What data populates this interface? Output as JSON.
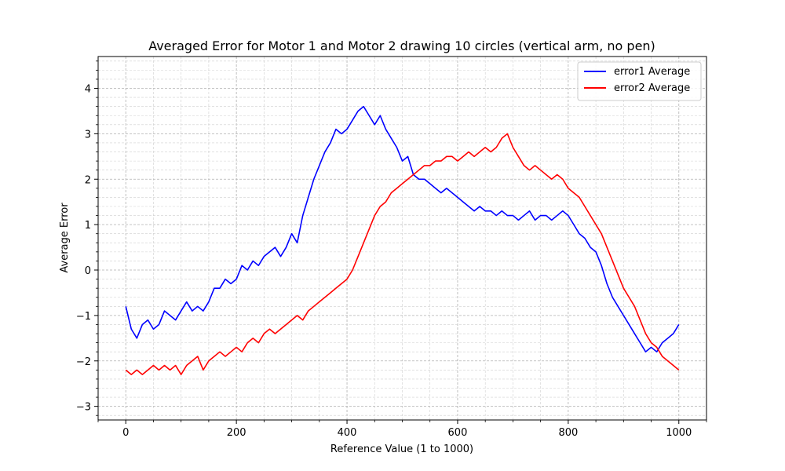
{
  "chart_data": {
    "type": "line",
    "title": "Averaged Error for Motor 1 and Motor 2 drawing 10 circles (vertical arm, no pen)",
    "xlabel": "Reference Value (1 to 1000)",
    "ylabel": "Average Error",
    "xlim": [
      -50,
      1050
    ],
    "ylim": [
      -3.3,
      4.7
    ],
    "xticks": [
      0,
      200,
      400,
      600,
      800,
      1000
    ],
    "yticks": [
      -3,
      -2,
      -1,
      0,
      1,
      2,
      3,
      4
    ],
    "grid": true,
    "grid_style": "dashed-major-and-minor",
    "legend_position": "top-right",
    "series": [
      {
        "name": "error1 Average",
        "color": "#0000ff",
        "x": [
          0,
          10,
          20,
          30,
          40,
          50,
          60,
          70,
          80,
          90,
          100,
          110,
          120,
          130,
          140,
          150,
          160,
          170,
          180,
          190,
          200,
          210,
          220,
          230,
          240,
          250,
          260,
          270,
          280,
          290,
          300,
          310,
          320,
          330,
          340,
          350,
          360,
          370,
          380,
          390,
          400,
          410,
          420,
          430,
          440,
          450,
          460,
          470,
          480,
          490,
          500,
          510,
          520,
          530,
          540,
          550,
          560,
          570,
          580,
          590,
          600,
          610,
          620,
          630,
          640,
          650,
          660,
          670,
          680,
          690,
          700,
          710,
          720,
          730,
          740,
          750,
          760,
          770,
          780,
          790,
          800,
          810,
          820,
          830,
          840,
          850,
          860,
          870,
          880,
          890,
          900,
          910,
          920,
          930,
          940,
          950,
          960,
          970,
          980,
          990,
          1000
        ],
        "y": [
          -0.8,
          -1.3,
          -1.5,
          -1.2,
          -1.1,
          -1.3,
          -1.2,
          -0.9,
          -1.0,
          -1.1,
          -0.9,
          -0.7,
          -0.9,
          -0.8,
          -0.9,
          -0.7,
          -0.4,
          -0.4,
          -0.2,
          -0.3,
          -0.2,
          0.1,
          0.0,
          0.2,
          0.1,
          0.3,
          0.4,
          0.5,
          0.3,
          0.5,
          0.8,
          0.6,
          1.2,
          1.6,
          2.0,
          2.3,
          2.6,
          2.8,
          3.1,
          3.0,
          3.1,
          3.3,
          3.5,
          3.6,
          3.4,
          3.2,
          3.4,
          3.1,
          2.9,
          2.7,
          2.4,
          2.5,
          2.1,
          2.0,
          2.0,
          1.9,
          1.8,
          1.7,
          1.8,
          1.7,
          1.6,
          1.5,
          1.4,
          1.3,
          1.4,
          1.3,
          1.3,
          1.2,
          1.3,
          1.2,
          1.2,
          1.1,
          1.2,
          1.3,
          1.1,
          1.2,
          1.2,
          1.1,
          1.2,
          1.3,
          1.2,
          1.0,
          0.8,
          0.7,
          0.5,
          0.4,
          0.1,
          -0.3,
          -0.6,
          -0.8,
          -1.0,
          -1.2,
          -1.4,
          -1.6,
          -1.8,
          -1.7,
          -1.8,
          -1.6,
          -1.5,
          -1.4,
          -1.2
        ]
      },
      {
        "name": "error2 Average",
        "color": "#ff0000",
        "x": [
          0,
          10,
          20,
          30,
          40,
          50,
          60,
          70,
          80,
          90,
          100,
          110,
          120,
          130,
          140,
          150,
          160,
          170,
          180,
          190,
          200,
          210,
          220,
          230,
          240,
          250,
          260,
          270,
          280,
          290,
          300,
          310,
          320,
          330,
          340,
          350,
          360,
          370,
          380,
          390,
          400,
          410,
          420,
          430,
          440,
          450,
          460,
          470,
          480,
          490,
          500,
          510,
          520,
          530,
          540,
          550,
          560,
          570,
          580,
          590,
          600,
          610,
          620,
          630,
          640,
          650,
          660,
          670,
          680,
          690,
          700,
          710,
          720,
          730,
          740,
          750,
          760,
          770,
          780,
          790,
          800,
          810,
          820,
          830,
          840,
          850,
          860,
          870,
          880,
          890,
          900,
          910,
          920,
          930,
          940,
          950,
          960,
          970,
          980,
          990,
          1000
        ],
        "y": [
          -2.2,
          -2.3,
          -2.2,
          -2.3,
          -2.2,
          -2.1,
          -2.2,
          -2.1,
          -2.2,
          -2.1,
          -2.3,
          -2.1,
          -2.0,
          -1.9,
          -2.2,
          -2.0,
          -1.9,
          -1.8,
          -1.9,
          -1.8,
          -1.7,
          -1.8,
          -1.6,
          -1.5,
          -1.6,
          -1.4,
          -1.3,
          -1.4,
          -1.3,
          -1.2,
          -1.1,
          -1.0,
          -1.1,
          -0.9,
          -0.8,
          -0.7,
          -0.6,
          -0.5,
          -0.4,
          -0.3,
          -0.2,
          0.0,
          0.3,
          0.6,
          0.9,
          1.2,
          1.4,
          1.5,
          1.7,
          1.8,
          1.9,
          2.0,
          2.1,
          2.2,
          2.3,
          2.3,
          2.4,
          2.4,
          2.5,
          2.5,
          2.4,
          2.5,
          2.6,
          2.5,
          2.6,
          2.7,
          2.6,
          2.7,
          2.9,
          3.0,
          2.7,
          2.5,
          2.3,
          2.2,
          2.3,
          2.2,
          2.1,
          2.0,
          2.1,
          2.0,
          1.8,
          1.7,
          1.6,
          1.4,
          1.2,
          1.0,
          0.8,
          0.5,
          0.2,
          -0.1,
          -0.4,
          -0.6,
          -0.8,
          -1.1,
          -1.4,
          -1.6,
          -1.7,
          -1.9,
          -2.0,
          -2.1,
          -2.2
        ]
      }
    ]
  }
}
